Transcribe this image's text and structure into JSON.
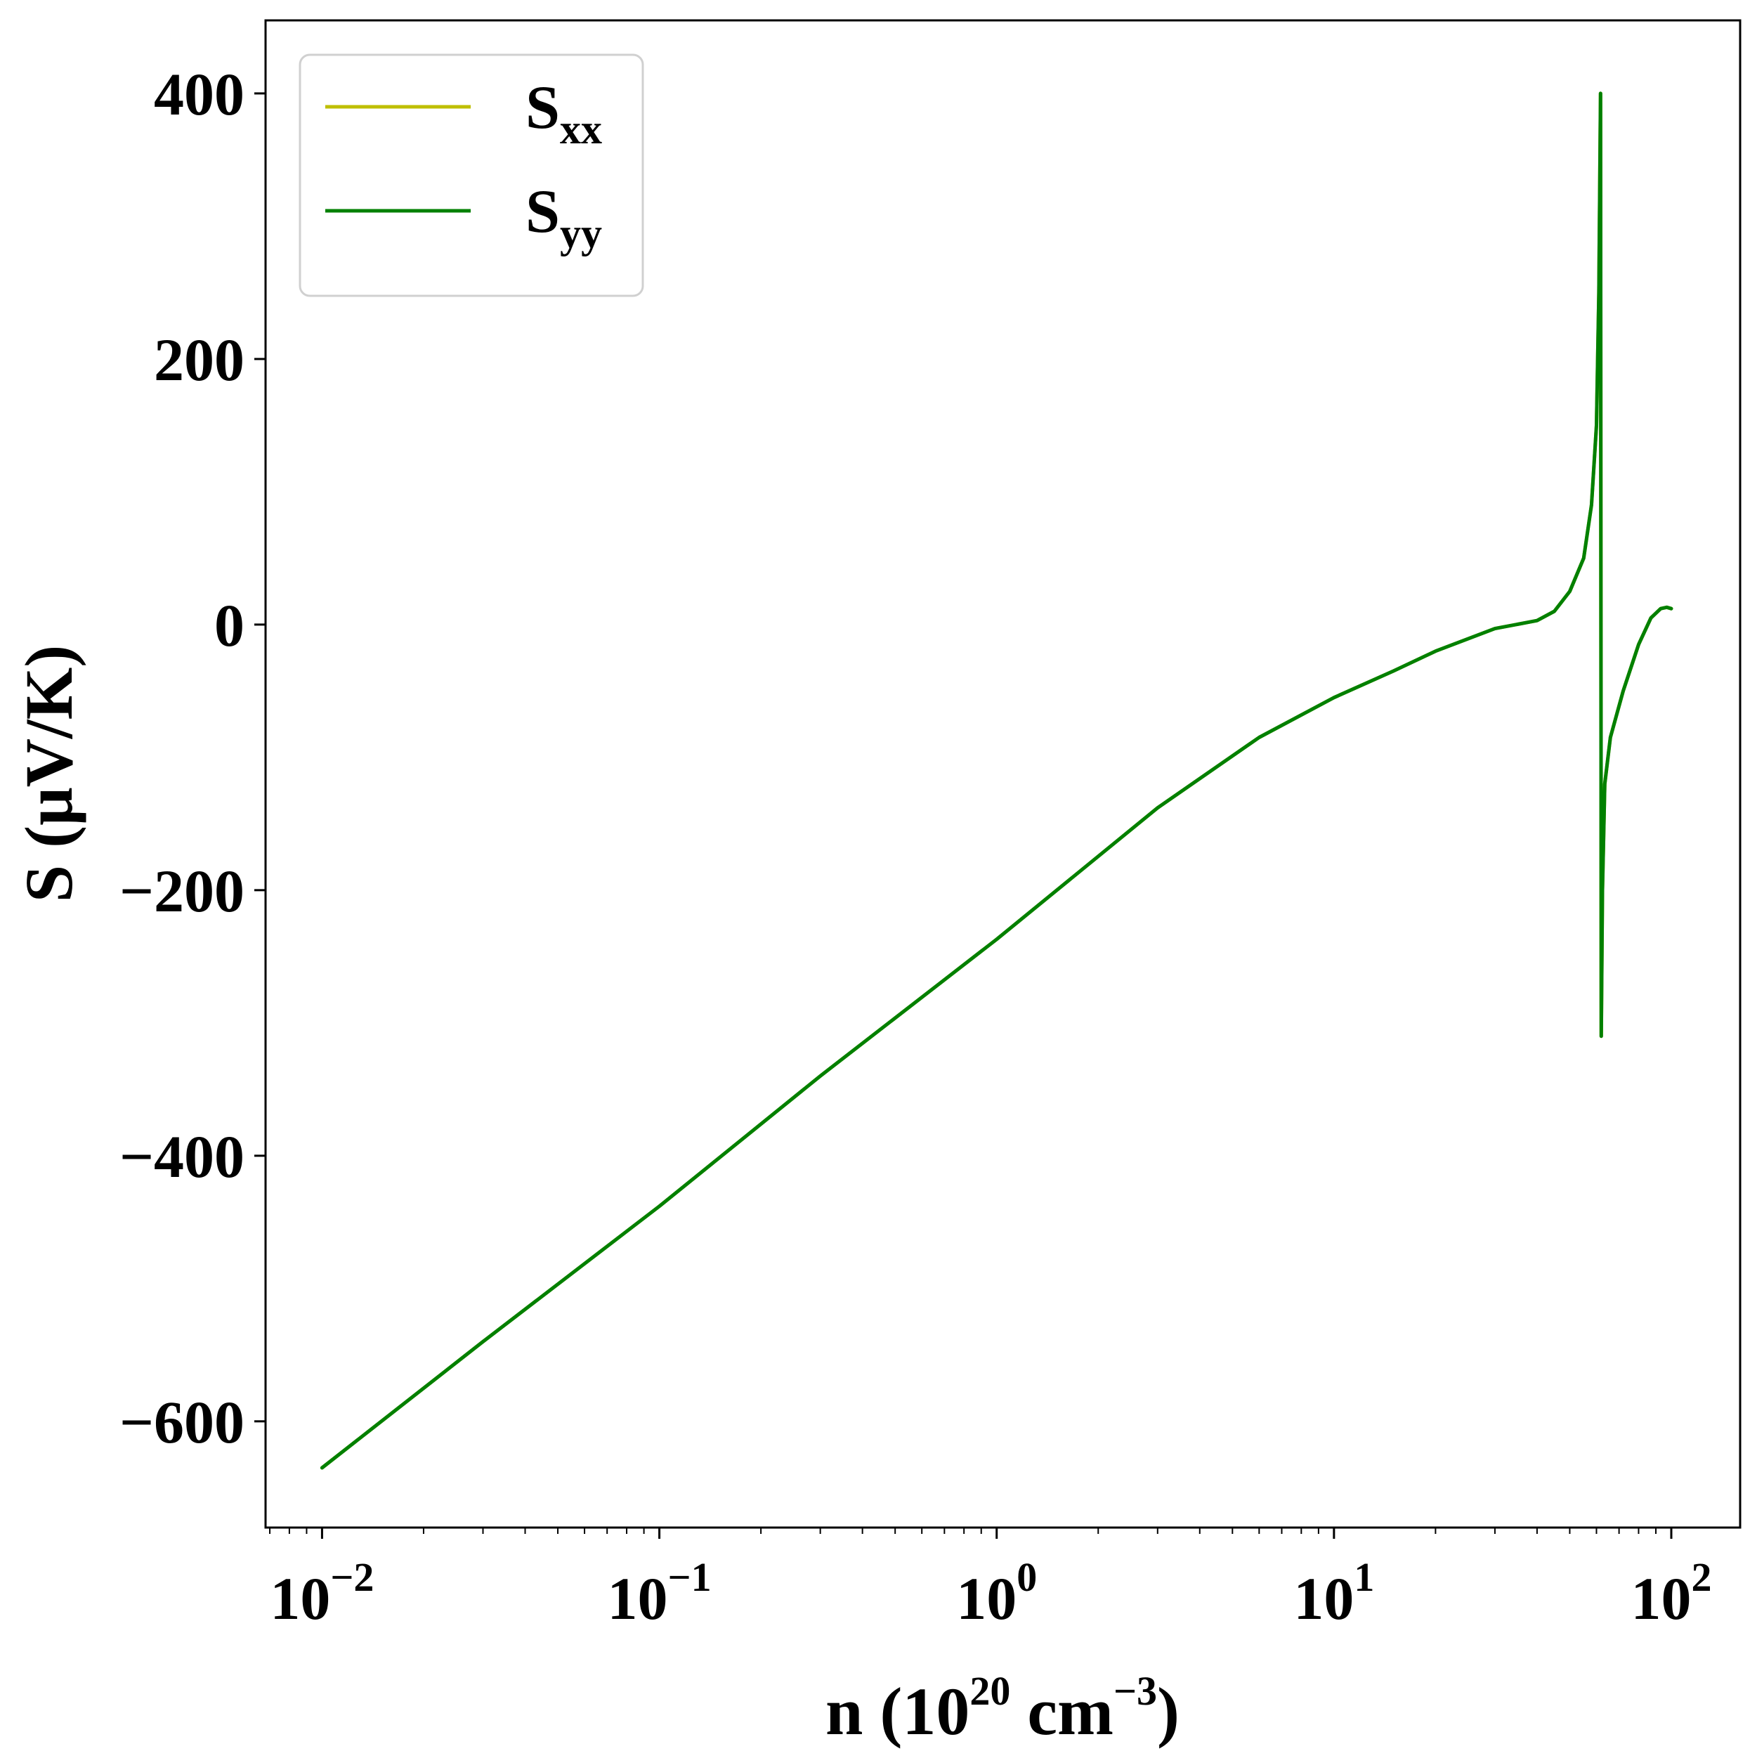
{
  "chart_data": {
    "type": "line",
    "xscale": "log",
    "xlim": [
      0.0068,
      160
    ],
    "ylim": [
      -680,
      455
    ],
    "xlabel": {
      "main": "n (10",
      "sup1": "20",
      "mid": " cm",
      "sup2": "−3",
      "end": ")"
    },
    "ylabel": "S (μV/K)",
    "x_ticks": [
      {
        "value": 0.01,
        "base": "10",
        "exp": "−2"
      },
      {
        "value": 0.1,
        "base": "10",
        "exp": "−1"
      },
      {
        "value": 1,
        "base": "10",
        "exp": "0"
      },
      {
        "value": 10,
        "base": "10",
        "exp": "1"
      },
      {
        "value": 100,
        "base": "10",
        "exp": "2"
      }
    ],
    "y_ticks": [
      {
        "value": 400,
        "label": "400"
      },
      {
        "value": 200,
        "label": "200"
      },
      {
        "value": 0,
        "label": "0"
      },
      {
        "value": -200,
        "label": "−200"
      },
      {
        "value": -400,
        "label": "−400"
      },
      {
        "value": -600,
        "label": "−600"
      }
    ],
    "grid": false,
    "legend_position": "top-left",
    "series": [
      {
        "name": "S",
        "subscript": "xx",
        "color": "#bfbf00",
        "points": [
          [
            0.01,
            -635
          ],
          [
            0.03,
            -540
          ],
          [
            0.1,
            -438
          ],
          [
            0.3,
            -340
          ],
          [
            1,
            -237
          ],
          [
            3,
            -138
          ],
          [
            6,
            -85
          ],
          [
            10,
            -55
          ],
          [
            15,
            -35
          ],
          [
            20,
            -20
          ],
          [
            30,
            -3
          ],
          [
            40,
            3
          ],
          [
            45,
            10
          ],
          [
            50,
            25
          ],
          [
            55,
            50
          ],
          [
            58,
            90
          ],
          [
            60,
            150
          ],
          [
            61,
            250
          ],
          [
            61.7,
            400
          ],
          [
            62,
            -310
          ],
          [
            62.5,
            -200
          ],
          [
            63.5,
            -120
          ],
          [
            66,
            -85
          ],
          [
            72,
            -50
          ],
          [
            80,
            -15
          ],
          [
            87,
            5
          ],
          [
            93,
            12
          ],
          [
            97,
            13
          ],
          [
            100,
            12
          ]
        ]
      },
      {
        "name": "S",
        "subscript": "yy",
        "color": "#008000",
        "points": [
          [
            0.01,
            -635
          ],
          [
            0.03,
            -540
          ],
          [
            0.1,
            -438
          ],
          [
            0.3,
            -340
          ],
          [
            1,
            -237
          ],
          [
            3,
            -138
          ],
          [
            6,
            -85
          ],
          [
            10,
            -55
          ],
          [
            15,
            -35
          ],
          [
            20,
            -20
          ],
          [
            30,
            -3
          ],
          [
            40,
            3
          ],
          [
            45,
            10
          ],
          [
            50,
            25
          ],
          [
            55,
            50
          ],
          [
            58,
            90
          ],
          [
            60,
            150
          ],
          [
            61,
            250
          ],
          [
            61.7,
            400
          ],
          [
            62,
            -310
          ],
          [
            62.5,
            -200
          ],
          [
            63.5,
            -120
          ],
          [
            66,
            -85
          ],
          [
            72,
            -50
          ],
          [
            80,
            -15
          ],
          [
            87,
            5
          ],
          [
            93,
            12
          ],
          [
            97,
            13
          ],
          [
            100,
            12
          ]
        ]
      }
    ]
  }
}
